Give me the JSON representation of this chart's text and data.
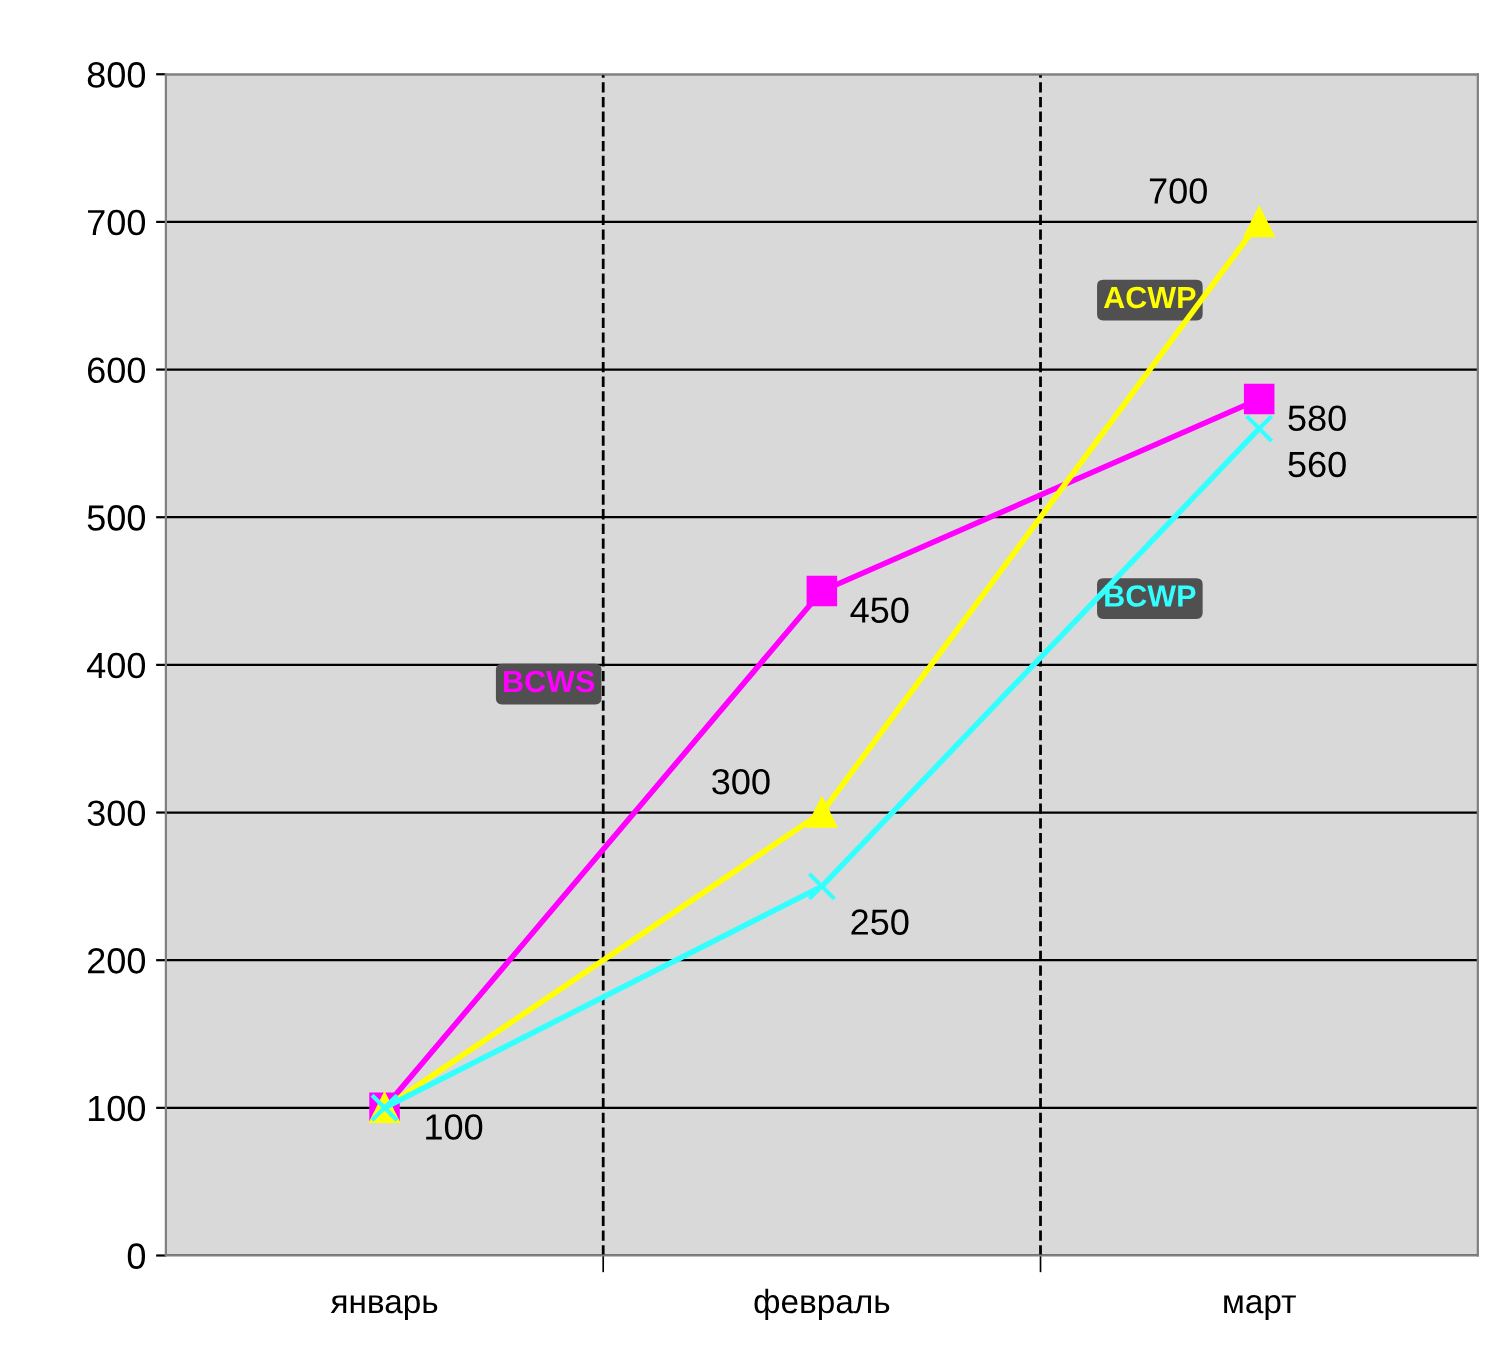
{
  "chart_data": {
    "type": "line",
    "categories": [
      "январь",
      "февраль",
      "март"
    ],
    "series": [
      {
        "name": "BCWS",
        "color": "#ff00ff",
        "marker": "square",
        "values": [
          100,
          450,
          580
        ],
        "value_labels": [
          "100",
          "450",
          "580"
        ]
      },
      {
        "name": "ACWP",
        "color": "#ffff00",
        "marker": "triangle",
        "values": [
          100,
          300,
          700
        ],
        "value_labels": [
          null,
          "300",
          "700"
        ]
      },
      {
        "name": "BCWP",
        "color": "#33ffff",
        "marker": "cross",
        "values": [
          100,
          250,
          560
        ],
        "value_labels": [
          null,
          "250",
          "560"
        ]
      }
    ],
    "ylim": [
      0,
      800
    ],
    "yticks": [
      0,
      100,
      200,
      300,
      400,
      500,
      600,
      700,
      800
    ],
    "grid": true,
    "legend": false,
    "line_style": "solid"
  }
}
